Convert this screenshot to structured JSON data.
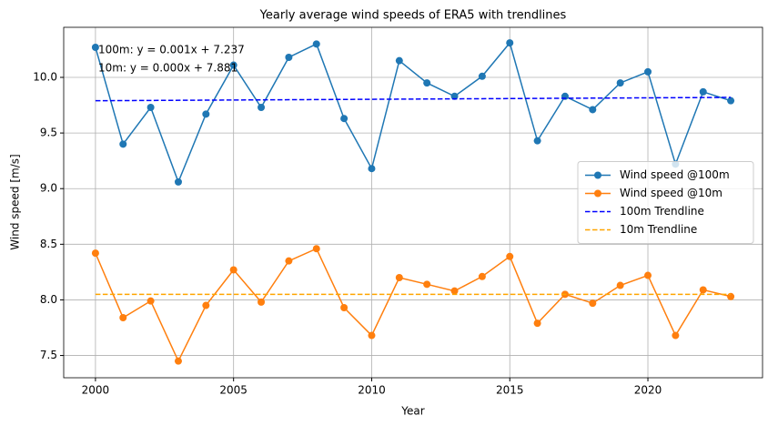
{
  "chart_data": {
    "type": "line",
    "title": "Yearly average wind speeds of ERA5 with trendlines",
    "x_label": "Year",
    "y_label": "Wind speed [m/s]",
    "x": [
      2000,
      2001,
      2002,
      2003,
      2004,
      2005,
      2006,
      2007,
      2008,
      2009,
      2010,
      2011,
      2012,
      2013,
      2014,
      2015,
      2016,
      2017,
      2018,
      2019,
      2020,
      2021,
      2022,
      2023
    ],
    "series": [
      {
        "name": "Wind speed @100m",
        "color": "#1f77b4",
        "marker": true,
        "dash": false,
        "values": [
          10.27,
          9.4,
          9.73,
          9.06,
          9.67,
          10.11,
          9.73,
          10.18,
          10.3,
          9.63,
          9.18,
          10.15,
          9.95,
          9.83,
          10.01,
          10.31,
          9.43,
          9.83,
          9.71,
          9.95,
          10.05,
          9.22,
          9.87,
          9.79
        ]
      },
      {
        "name": "Wind speed @10m",
        "color": "#ff7f0e",
        "marker": true,
        "dash": false,
        "values": [
          8.42,
          7.84,
          7.99,
          7.45,
          7.95,
          8.27,
          7.98,
          8.35,
          8.46,
          7.93,
          7.68,
          8.2,
          8.14,
          8.08,
          8.21,
          8.39,
          7.79,
          8.05,
          7.97,
          8.13,
          8.22,
          7.68,
          8.09,
          8.03
        ]
      },
      {
        "name": "100m Trendline",
        "color": "#0000ff",
        "marker": false,
        "dash": true,
        "x": [
          2000,
          2023
        ],
        "values": [
          9.79,
          9.82
        ]
      },
      {
        "name": "10m Trendline",
        "color": "#ffa500",
        "marker": false,
        "dash": true,
        "x": [
          2000,
          2023
        ],
        "values": [
          8.05,
          8.05
        ]
      }
    ],
    "annotations": [
      {
        "text": "100m: y = 0.001x + 7.237",
        "color": "#0000ff"
      },
      {
        "text": "10m: y = 0.000x + 7.881",
        "color": "#ffa500"
      }
    ],
    "xlim": [
      1998.85,
      2024.15
    ],
    "xticks": [
      2000,
      2005,
      2010,
      2015,
      2020
    ],
    "ylim": [
      7.3,
      10.45
    ],
    "yticks": [
      7.5,
      {
        "value": 8,
        "label": "8.0"
      },
      8.5,
      {
        "value": 9,
        "label": "9.0"
      },
      9.5,
      {
        "value": 10,
        "label": "10.0"
      }
    ],
    "grid": true,
    "legend": "center right"
  }
}
